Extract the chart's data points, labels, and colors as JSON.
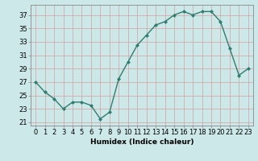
{
  "x": [
    0,
    1,
    2,
    3,
    4,
    5,
    6,
    7,
    8,
    9,
    10,
    11,
    12,
    13,
    14,
    15,
    16,
    17,
    18,
    19,
    20,
    21,
    22,
    23
  ],
  "y": [
    27,
    25.5,
    24.5,
    23,
    24,
    24,
    23.5,
    21.5,
    22.5,
    27.5,
    30,
    32.5,
    34,
    35.5,
    36,
    37,
    37.5,
    37,
    37.5,
    37.5,
    36,
    32,
    28,
    29
  ],
  "line_color": "#2e7d6e",
  "marker": "D",
  "marker_size": 2.0,
  "line_width": 1.0,
  "bg_color": "#cce8e8",
  "grid_color": "#b0d4d4",
  "xlabel": "Humidex (Indice chaleur)",
  "xlim": [
    -0.5,
    23.5
  ],
  "ylim": [
    20.5,
    38.5
  ],
  "yticks": [
    21,
    23,
    25,
    27,
    29,
    31,
    33,
    35,
    37
  ],
  "xtick_labels": [
    "0",
    "1",
    "2",
    "3",
    "4",
    "5",
    "6",
    "7",
    "8",
    "9",
    "10",
    "11",
    "12",
    "13",
    "14",
    "15",
    "16",
    "17",
    "18",
    "19",
    "20",
    "21",
    "22",
    "23"
  ],
  "axis_fontsize": 6.5,
  "tick_fontsize": 6.0
}
